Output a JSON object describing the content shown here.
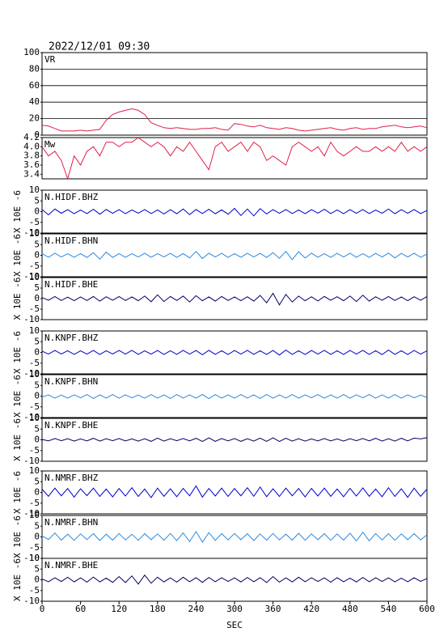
{
  "chart_data": {
    "type": "line",
    "title": "2022/12/01 09:30",
    "xlabel": "SEC",
    "xlim": [
      0,
      600
    ],
    "xticks": [
      0,
      60,
      120,
      180,
      240,
      300,
      360,
      420,
      480,
      540,
      600
    ],
    "x": [
      0,
      10,
      20,
      30,
      40,
      50,
      60,
      70,
      80,
      90,
      100,
      110,
      120,
      130,
      140,
      150,
      160,
      170,
      180,
      190,
      200,
      210,
      220,
      230,
      240,
      250,
      260,
      270,
      280,
      290,
      300,
      310,
      320,
      330,
      340,
      350,
      360,
      370,
      380,
      390,
      400,
      410,
      420,
      430,
      440,
      450,
      460,
      470,
      480,
      490,
      500,
      510,
      520,
      530,
      540,
      550,
      560,
      570,
      580,
      590,
      600
    ],
    "panels": [
      {
        "ylim": [
          0,
          100
        ],
        "yticks": [
          0,
          20,
          40,
          60,
          80,
          100
        ],
        "grid": true,
        "series": [
          {
            "name": "VR",
            "color": "#e0204a",
            "values": [
              12,
              11,
              8,
              5,
              5,
              5,
              6,
              5,
              6,
              7,
              18,
              25,
              28,
              30,
              32,
              30,
              25,
              15,
              12,
              9,
              8,
              9,
              8,
              7,
              7,
              8,
              8,
              9,
              7,
              6,
              14,
              13,
              11,
              10,
              12,
              9,
              8,
              7,
              9,
              8,
              6,
              5,
              6,
              7,
              8,
              9,
              7,
              6,
              8,
              9,
              7,
              8,
              8,
              10,
              11,
              12,
              10,
              9,
              10,
              11,
              9
            ]
          }
        ]
      },
      {
        "ylim": [
          3.3,
          4.2
        ],
        "yticks": [
          3.4,
          3.6,
          3.8,
          {
            "value": 4,
            "label": "4.0"
          },
          4.2
        ],
        "grid": false,
        "series": [
          {
            "name": "Mw",
            "color": "#e0204a",
            "values": [
              4.0,
              3.8,
              3.9,
              3.7,
              3.3,
              3.8,
              3.6,
              3.9,
              4.0,
              3.8,
              4.1,
              4.1,
              4.0,
              4.1,
              4.1,
              4.2,
              4.1,
              4.0,
              4.1,
              4.0,
              3.8,
              4.0,
              3.9,
              4.1,
              3.9,
              3.7,
              3.5,
              4.0,
              4.1,
              3.9,
              4.0,
              4.1,
              3.9,
              4.1,
              4.0,
              3.7,
              3.8,
              3.7,
              3.6,
              4.0,
              4.1,
              4.0,
              3.9,
              4.0,
              3.8,
              4.1,
              3.9,
              3.8,
              3.9,
              4.0,
              3.9,
              3.9,
              4.0,
              3.9,
              4.0,
              3.9,
              4.1,
              3.9,
              4.0,
              3.9,
              4.0
            ]
          }
        ]
      },
      {
        "ylabel": "X 10E -6",
        "ylim": [
          -10,
          10
        ],
        "yticks": [
          -10,
          -5,
          0,
          5,
          10
        ],
        "grid": false,
        "series": [
          {
            "name": "N.HIDF.BHZ",
            "color": "#0000cc",
            "values": [
              1,
              -1.5,
              1.2,
              -0.8,
              0.9,
              -1,
              0.7,
              -0.9,
              1.1,
              -1.2,
              1,
              -0.8,
              0.9,
              -1,
              0.8,
              -0.7,
              1,
              -0.9,
              0.8,
              -1.1,
              0.9,
              -1,
              1.2,
              -1.4,
              1,
              -0.9,
              1.1,
              -1,
              0.8,
              -1.2,
              1.5,
              -1.8,
              1.2,
              -2,
              1.4,
              -1.1,
              0.9,
              -0.8,
              1,
              -0.9,
              0.8,
              -1,
              0.9,
              -0.7,
              1.1,
              -0.9,
              0.8,
              -1,
              0.9,
              -0.8,
              1,
              -0.9,
              0.7,
              -0.8,
              1.2,
              -1,
              0.9,
              -0.8,
              1,
              -0.9,
              0.5
            ]
          }
        ]
      },
      {
        "ylabel": "X 10E -6",
        "ylim": [
          -10,
          10
        ],
        "yticks": [
          -10,
          -5,
          0,
          5,
          10
        ],
        "grid": false,
        "series": [
          {
            "name": "N.HIDF.BHN",
            "color": "#2a8ae0",
            "values": [
              0.8,
              -0.9,
              1,
              -0.8,
              0.7,
              -0.9,
              0.8,
              -1,
              1.2,
              -1.8,
              1.5,
              -1,
              0.8,
              -0.9,
              0.7,
              -0.8,
              1,
              -0.9,
              0.8,
              -0.7,
              0.9,
              -1,
              0.8,
              -1.2,
              1.8,
              -1.5,
              1,
              -0.8,
              0.9,
              -1,
              0.8,
              -0.9,
              1,
              -0.8,
              0.9,
              -1,
              1.2,
              -1.4,
              1.8,
              -2,
              1.7,
              -1.3,
              1,
              -0.9,
              0.8,
              -1,
              0.9,
              -0.8,
              1,
              -0.9,
              0.8,
              -1,
              0.9,
              -0.8,
              1,
              -1.2,
              0.9,
              -0.8,
              1,
              -0.9,
              0.6
            ]
          }
        ]
      },
      {
        "ylabel": "X 10E -6",
        "ylim": [
          -10,
          10
        ],
        "yticks": [
          -10,
          -5,
          0,
          5,
          10
        ],
        "grid": false,
        "series": [
          {
            "name": "N.HIDF.BHE",
            "color": "#000066",
            "values": [
              0.5,
              -0.8,
              1,
              -0.9,
              0.7,
              -1,
              0.8,
              -0.9,
              1,
              -1.2,
              0.9,
              -0.8,
              1,
              -0.9,
              0.8,
              -1,
              1.2,
              -1.5,
              1.8,
              -1.4,
              1,
              -0.9,
              1.2,
              -1.6,
              1.4,
              -1,
              0.8,
              -1.2,
              1,
              -0.9,
              0.8,
              -1,
              0.9,
              -1.2,
              1.5,
              -2,
              2.5,
              -3,
              2,
              -1.6,
              1.2,
              -1,
              0.9,
              -1.1,
              1,
              -0.8,
              0.9,
              -1,
              1.2,
              -1.4,
              1.6,
              -1.2,
              0.9,
              -0.8,
              1,
              -0.9,
              0.8,
              -1,
              0.9,
              -0.8,
              1
            ]
          }
        ]
      },
      {
        "ylabel": "X 10E -6",
        "ylim": [
          -10,
          10
        ],
        "yticks": [
          -10,
          -5,
          0,
          5,
          10
        ],
        "grid": false,
        "series": [
          {
            "name": "N.KNPF.BHZ",
            "color": "#0000cc",
            "values": [
              0.6,
              -0.8,
              0.9,
              -0.7,
              0.8,
              -0.9,
              0.7,
              -0.8,
              0.9,
              -1,
              0.8,
              -0.7,
              0.9,
              -0.8,
              1,
              -0.9,
              0.7,
              -0.8,
              0.9,
              -1,
              0.8,
              -0.9,
              1,
              -0.8,
              0.9,
              -1.1,
              1,
              -0.9,
              0.8,
              -1,
              0.9,
              -0.8,
              1,
              -0.9,
              0.8,
              -1,
              0.9,
              -1.2,
              1.1,
              -0.9,
              0.8,
              -1,
              0.9,
              -0.8,
              1,
              -0.9,
              0.8,
              -1,
              0.9,
              -0.8,
              1,
              -0.9,
              0.8,
              -1,
              1.1,
              -0.9,
              0.8,
              -1,
              0.9,
              -0.8,
              0.7
            ]
          }
        ]
      },
      {
        "ylabel": "X 10E -6",
        "ylim": [
          -10,
          10
        ],
        "yticks": [
          -10,
          -5,
          0,
          5,
          10
        ],
        "grid": false,
        "series": [
          {
            "name": "N.KNPF.BHN",
            "color": "#2a8ae0",
            "values": [
              -0.5,
              0.6,
              -0.9,
              0.5,
              -1,
              0.6,
              -0.8,
              0.7,
              -1.1,
              0.6,
              -0.9,
              0.7,
              -1,
              0.6,
              -0.8,
              0.5,
              -1,
              0.7,
              -0.9,
              0.6,
              -1.1,
              0.7,
              -0.9,
              0.6,
              -1,
              0.8,
              -1.2,
              0.7,
              -0.9,
              0.6,
              -1,
              0.7,
              -0.9,
              0.6,
              -1.1,
              0.8,
              -1,
              0.6,
              -0.9,
              0.7,
              -1,
              0.6,
              -0.8,
              0.7,
              -1,
              0.6,
              -0.9,
              0.7,
              -1,
              0.6,
              -0.8,
              0.7,
              -1,
              0.6,
              -0.9,
              0.7,
              -1,
              0.6,
              -0.8,
              0.5,
              -0.7
            ]
          }
        ]
      },
      {
        "ylabel": "X 10E -6",
        "ylim": [
          -10,
          10
        ],
        "yticks": [
          -10,
          -5,
          0,
          5,
          10
        ],
        "grid": false,
        "series": [
          {
            "name": "N.KNPF.BHE",
            "color": "#000066",
            "values": [
              0.2,
              -0.5,
              0.6,
              -0.4,
              0.5,
              -0.6,
              0.4,
              -0.5,
              0.7,
              -0.6,
              0.5,
              -0.4,
              0.6,
              -0.5,
              0.4,
              -0.6,
              0.5,
              -0.7,
              0.8,
              -0.6,
              0.5,
              -0.4,
              0.6,
              -0.5,
              0.7,
              -0.8,
              0.9,
              -0.7,
              0.6,
              -0.5,
              0.6,
              -0.7,
              0.5,
              -0.6,
              0.8,
              -0.7,
              0.9,
              -0.8,
              0.7,
              -0.6,
              0.5,
              -0.6,
              0.4,
              -0.5,
              0.6,
              -0.5,
              0.4,
              -0.6,
              0.5,
              -0.4,
              0.6,
              -0.5,
              0.7,
              -0.6,
              0.5,
              -0.6,
              0.7,
              -0.5,
              0.8,
              0.4,
              1
            ]
          }
        ]
      },
      {
        "ylabel": "X 10E -6",
        "ylim": [
          -10,
          10
        ],
        "yticks": [
          -10,
          -5,
          0,
          5,
          10
        ],
        "grid": false,
        "series": [
          {
            "name": "N.NMRF.BHZ",
            "color": "#0000cc",
            "values": [
              1.5,
              -1.8,
              2,
              -1.6,
              1.8,
              -2.2,
              1.7,
              -1.5,
              2,
              -1.9,
              1.6,
              -2.1,
              1.8,
              -1.7,
              2.2,
              -1.9,
              1.6,
              -2.4,
              2,
              -1.8,
              1.7,
              -2,
              1.9,
              -1.6,
              3,
              -2.2,
              1.8,
              -1.7,
              2,
              -1.9,
              1.8,
              -1.6,
              2.2,
              -1.8,
              2.5,
              -2,
              1.7,
              -1.9,
              2,
              -1.6,
              1.8,
              -2.1,
              1.9,
              -1.7,
              2,
              -1.8,
              1.6,
              -2,
              1.9,
              -1.7,
              2.1,
              -1.8,
              1.6,
              -2,
              2.2,
              -1.9,
              1.7,
              -2.3,
              2,
              -1.8,
              1.5
            ]
          }
        ]
      },
      {
        "ylabel": "X 10E -6",
        "ylim": [
          -10,
          10
        ],
        "yticks": [
          -10,
          -5,
          0,
          5,
          10
        ],
        "grid": false,
        "series": [
          {
            "name": "N.NMRF.BHN",
            "color": "#2a8ae0",
            "values": [
              0.5,
              -1.2,
              1.8,
              -1.5,
              1.3,
              -1.6,
              1.4,
              -1.2,
              1.5,
              -1.7,
              1.3,
              -1.5,
              1.6,
              -1.4,
              1.2,
              -1.6,
              1.5,
              -1.3,
              1.4,
              -1.5,
              1.6,
              -1.7,
              1.9,
              -2.2,
              2.5,
              -2.4,
              2,
              -1.6,
              1.5,
              -1.4,
              1.6,
              -1.3,
              1.5,
              -1.7,
              1.4,
              -1.5,
              1.6,
              -1.4,
              1.3,
              -1.5,
              1.7,
              -1.6,
              1.4,
              -1.3,
              1.5,
              -1.6,
              1.4,
              -1.5,
              1.7,
              -1.9,
              2.2,
              -1.8,
              1.6,
              -1.4,
              1.5,
              -1.6,
              1.4,
              -1.3,
              1.5,
              -1.4,
              1
            ]
          }
        ]
      },
      {
        "ylabel": "X 10E -6",
        "ylim": [
          -10,
          10
        ],
        "yticks": [
          -10,
          -5,
          0,
          5,
          10
        ],
        "grid": false,
        "series": [
          {
            "name": "N.NMRF.BHE",
            "color": "#000066",
            "values": [
              0.4,
              -0.9,
              1,
              -0.8,
              1.2,
              -1,
              0.9,
              -1.1,
              1.3,
              -1,
              0.8,
              -1.2,
              1.5,
              -1.3,
              1.8,
              -2,
              2.2,
              -1.6,
              1.2,
              -1,
              0.9,
              -1.1,
              1.2,
              -0.9,
              1,
              -1.2,
              1.1,
              -0.9,
              1,
              -0.8,
              0.9,
              -1,
              1.1,
              -0.9,
              1,
              -1.3,
              1.5,
              -1.1,
              0.9,
              -1,
              1.2,
              -0.9,
              1,
              -0.8,
              0.9,
              -1.1,
              1,
              -0.9,
              0.8,
              -1,
              1.1,
              -0.9,
              1,
              -0.8,
              0.9,
              -1,
              0.8,
              -0.9,
              1,
              -0.7,
              0.6
            ]
          }
        ]
      }
    ]
  }
}
